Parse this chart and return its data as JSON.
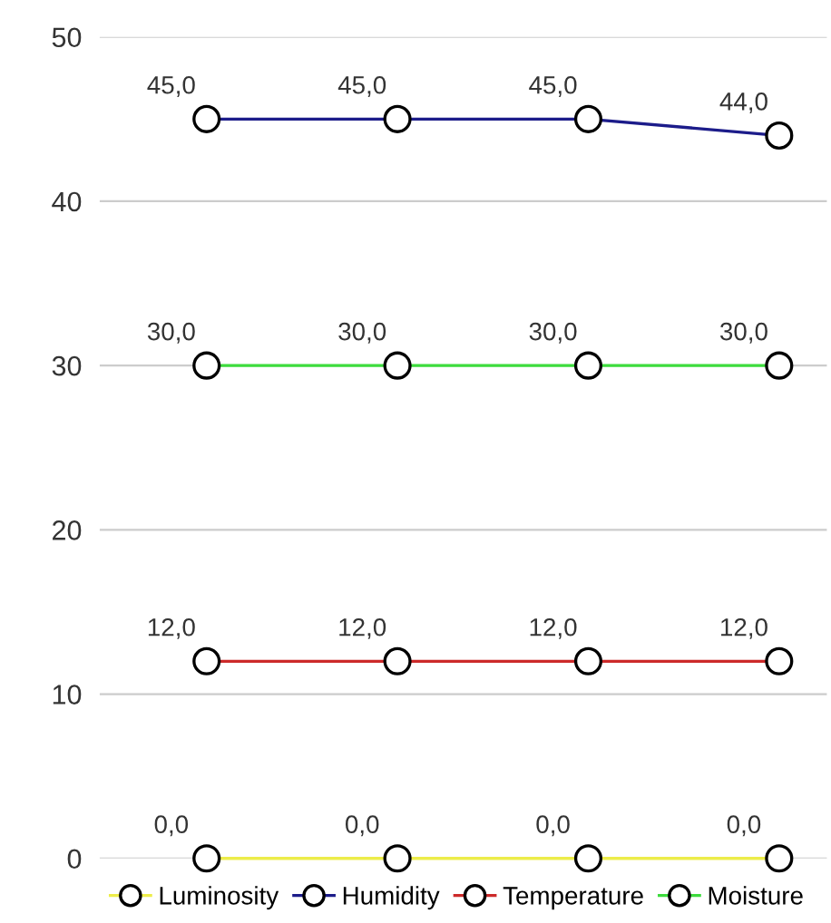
{
  "chart_data": {
    "type": "line",
    "categories": [
      null,
      null,
      null,
      null
    ],
    "series": [
      {
        "name": "Luminosity",
        "color": "#eded4a",
        "values": [
          0,
          0,
          0,
          0
        ],
        "value_labels": [
          "0,0",
          "0,0",
          "0,0",
          "0,0"
        ]
      },
      {
        "name": "Humidity",
        "color": "#1c1c8a",
        "values": [
          45,
          45,
          45,
          44
        ],
        "value_labels": [
          "45,0",
          "45,0",
          "45,0",
          "44,0"
        ]
      },
      {
        "name": "Temperature",
        "color": "#cc2a2a",
        "values": [
          12,
          12,
          12,
          12
        ],
        "value_labels": [
          "12,0",
          "12,0",
          "12,0",
          "12,0"
        ]
      },
      {
        "name": "Moisture",
        "color": "#3ddc3d",
        "values": [
          30,
          30,
          30,
          30
        ],
        "value_labels": [
          "30,0",
          "30,0",
          "30,0",
          "30,0"
        ]
      }
    ],
    "ylim": [
      0,
      50
    ],
    "yticks": [
      0,
      10,
      20,
      30,
      40,
      50
    ],
    "tick_labels": "y",
    "grid": "y",
    "legend": "bottom",
    "marker": "circle",
    "line_style": "solid"
  }
}
